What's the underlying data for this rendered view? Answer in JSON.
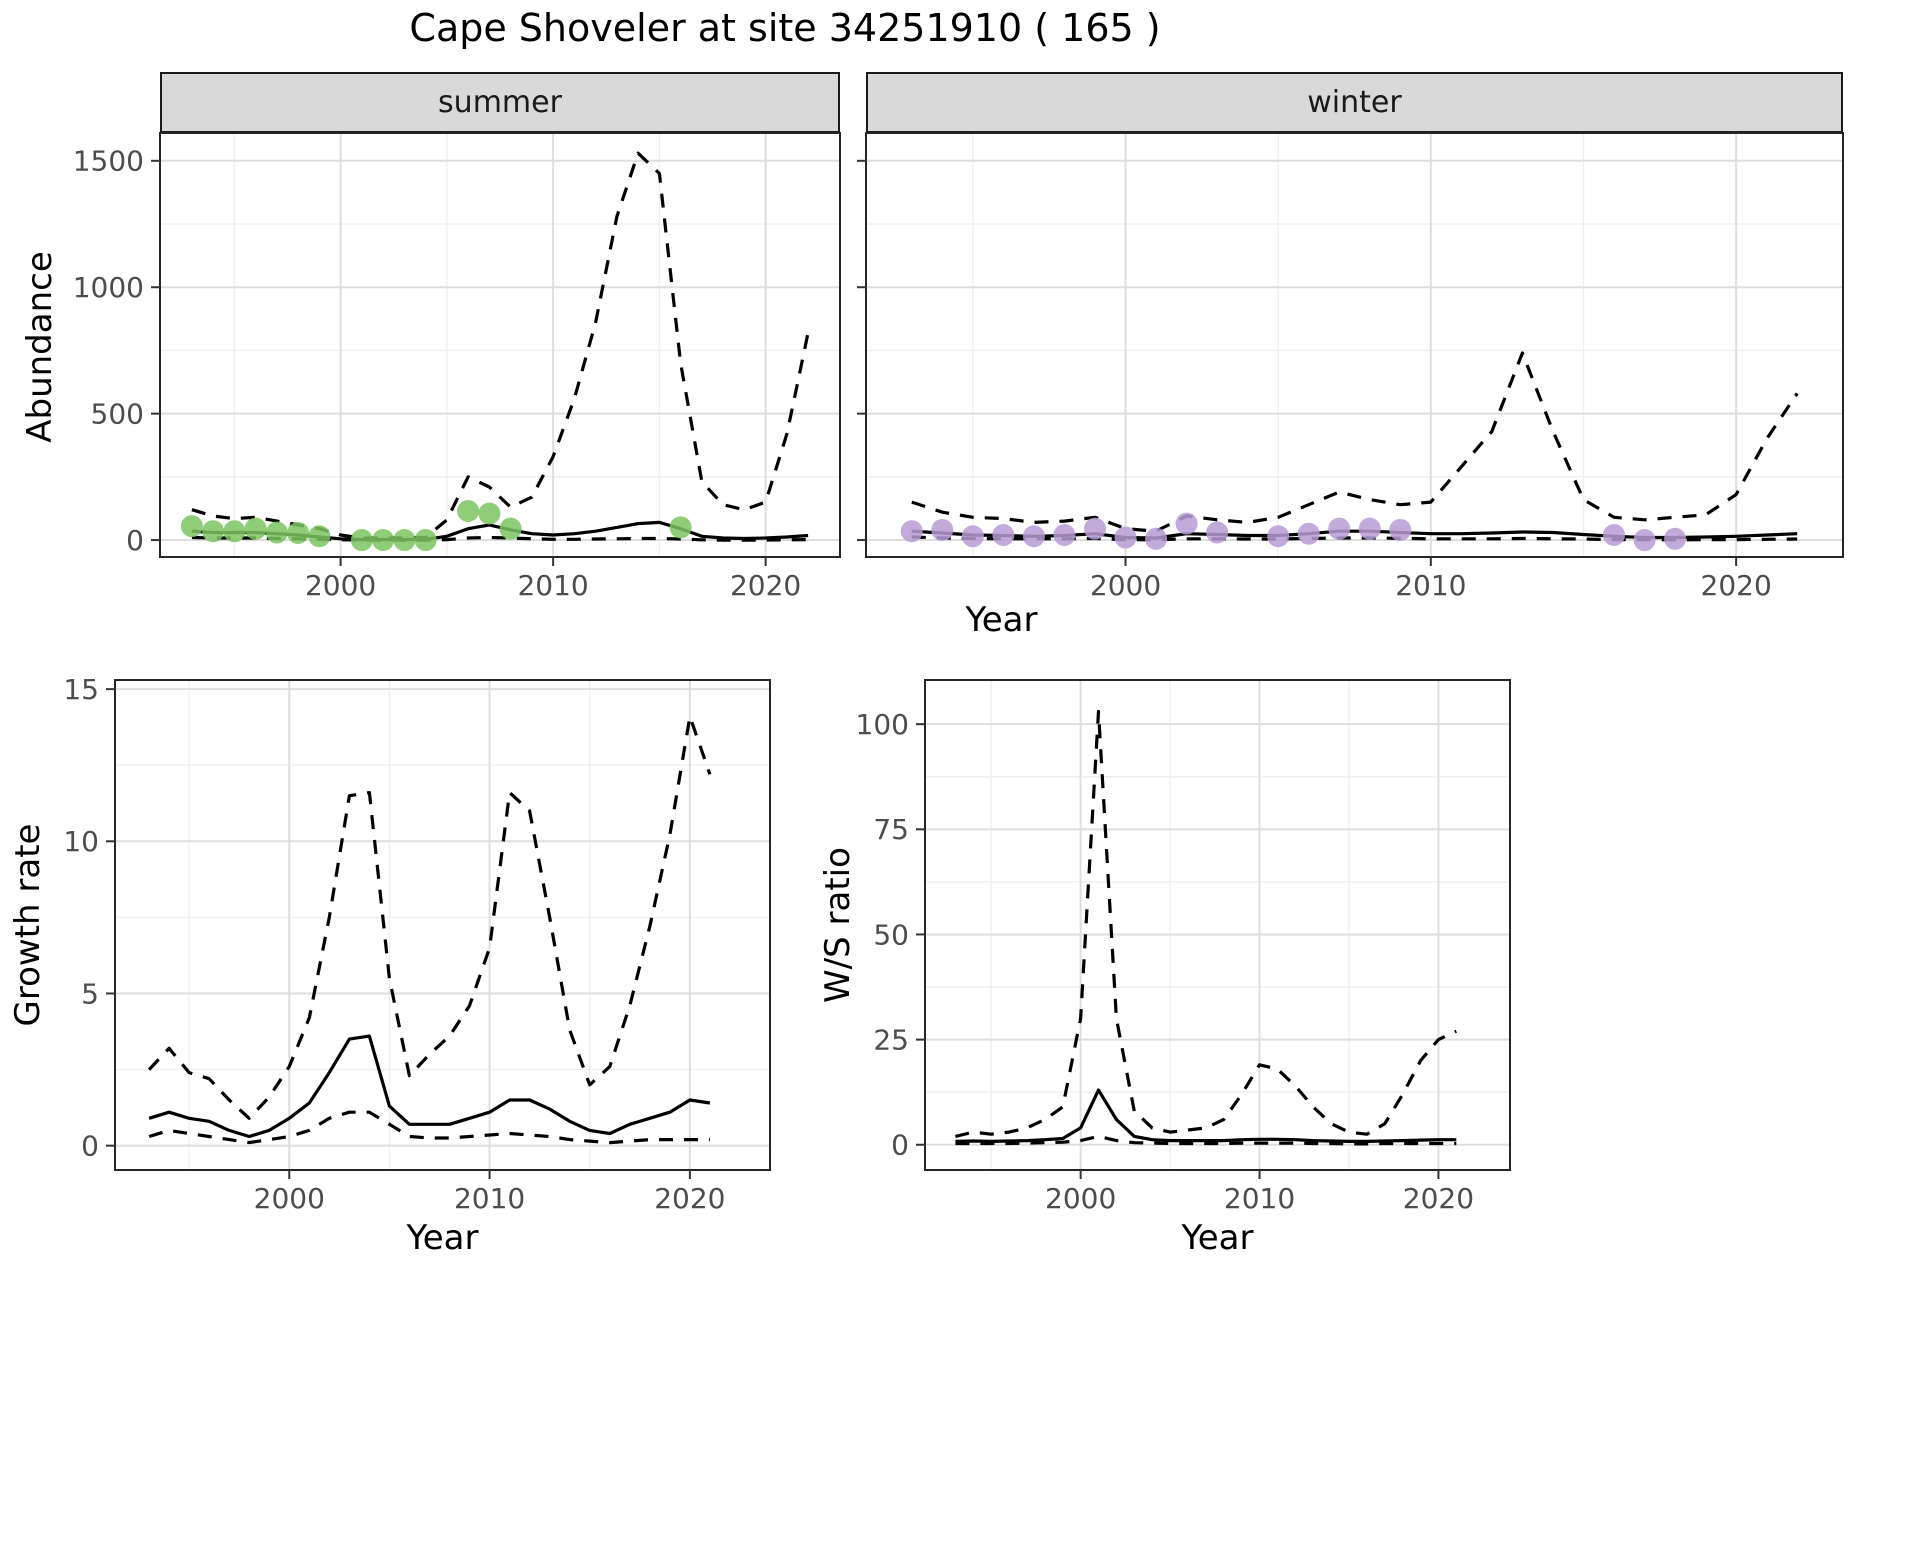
{
  "title": "Cape Shoveler at site 34251910 ( 165 )",
  "colors": {
    "summer_points": "#7DC462",
    "winter_points": "#B79BD4",
    "line": "#000000",
    "grid_major": "#DEDEDE",
    "grid_minor": "#EFEFEF",
    "strip_bg": "#D9D9D9",
    "tick_text": "#4D4D4D",
    "panel_border": "#262626"
  },
  "chart_data": [
    {
      "id": "abundance-summer",
      "type": "line",
      "facet_label": "summer",
      "xlabel": "Year",
      "ylabel": "Abundance",
      "xlim": [
        1991.5,
        2023.5
      ],
      "ylim": [
        -67,
        1610
      ],
      "xticks": [
        2000,
        2010,
        2020
      ],
      "yticks": [
        0,
        500,
        1000,
        1500
      ],
      "series": [
        {
          "name": "upper-ci",
          "style": "dashed",
          "x": [
            1993,
            1994,
            1995,
            1996,
            1997,
            1998,
            1999,
            2000,
            2001,
            2002,
            2003,
            2004,
            2005,
            2006,
            2007,
            2008,
            2009,
            2010,
            2011,
            2012,
            2013,
            2014,
            2015,
            2016,
            2017,
            2018,
            2019,
            2020,
            2021,
            2022
          ],
          "y": [
            120,
            95,
            85,
            90,
            75,
            60,
            45,
            20,
            8,
            8,
            8,
            10,
            80,
            250,
            210,
            130,
            170,
            330,
            560,
            860,
            1280,
            1530,
            1450,
            700,
            230,
            140,
            120,
            150,
            420,
            820
          ]
        },
        {
          "name": "mean-fit",
          "style": "solid",
          "x": [
            1993,
            1994,
            1995,
            1996,
            1997,
            1998,
            1999,
            2000,
            2001,
            2002,
            2003,
            2004,
            2005,
            2006,
            2007,
            2008,
            2009,
            2010,
            2011,
            2012,
            2013,
            2014,
            2015,
            2016,
            2017,
            2018,
            2019,
            2020,
            2021,
            2022
          ],
          "y": [
            35,
            30,
            30,
            30,
            25,
            20,
            12,
            5,
            2,
            2,
            2,
            3,
            15,
            45,
            60,
            40,
            25,
            20,
            25,
            35,
            50,
            65,
            70,
            45,
            15,
            8,
            6,
            8,
            12,
            18
          ]
        },
        {
          "name": "lower-ci",
          "style": "dashed",
          "x": [
            1993,
            1994,
            1995,
            1996,
            1997,
            1998,
            1999,
            2000,
            2001,
            2002,
            2003,
            2004,
            2005,
            2006,
            2007,
            2008,
            2009,
            2010,
            2011,
            2012,
            2013,
            2014,
            2015,
            2016,
            2017,
            2018,
            2019,
            2020,
            2021,
            2022
          ],
          "y": [
            10,
            8,
            8,
            8,
            6,
            5,
            3,
            1,
            0,
            0,
            0,
            0,
            2,
            8,
            10,
            8,
            5,
            3,
            3,
            4,
            5,
            6,
            6,
            4,
            1,
            0,
            0,
            0,
            1,
            2
          ]
        },
        {
          "name": "observed-counts",
          "style": "points",
          "color": "#7DC462",
          "x": [
            1993,
            1994,
            1995,
            1996,
            1997,
            1998,
            1999,
            2001,
            2002,
            2003,
            2004,
            2006,
            2007,
            2008,
            2016
          ],
          "y": [
            55,
            35,
            35,
            45,
            30,
            28,
            15,
            0,
            0,
            0,
            0,
            115,
            105,
            45,
            50
          ]
        }
      ]
    },
    {
      "id": "abundance-winter",
      "type": "line",
      "facet_label": "winter",
      "xlabel": "Year",
      "ylabel": "Abundance",
      "xlim": [
        1991.5,
        2023.5
      ],
      "ylim": [
        -67,
        1610
      ],
      "xticks": [
        2000,
        2010,
        2020
      ],
      "yticks": [
        0,
        500,
        1000,
        1500
      ],
      "series": [
        {
          "name": "upper-ci",
          "style": "dashed",
          "x": [
            1993,
            1994,
            1995,
            1996,
            1997,
            1998,
            1999,
            2000,
            2001,
            2002,
            2003,
            2004,
            2005,
            2006,
            2007,
            2008,
            2009,
            2010,
            2011,
            2012,
            2013,
            2014,
            2015,
            2016,
            2017,
            2018,
            2019,
            2020,
            2021,
            2022
          ],
          "y": [
            150,
            110,
            90,
            85,
            70,
            75,
            90,
            45,
            35,
            95,
            80,
            70,
            90,
            140,
            190,
            160,
            140,
            150,
            290,
            430,
            740,
            430,
            160,
            90,
            80,
            90,
            100,
            180,
            400,
            580
          ]
        },
        {
          "name": "mean-fit",
          "style": "solid",
          "x": [
            1993,
            1994,
            1995,
            1996,
            1997,
            1998,
            1999,
            2000,
            2001,
            2002,
            2003,
            2004,
            2005,
            2006,
            2007,
            2008,
            2009,
            2010,
            2011,
            2012,
            2013,
            2014,
            2015,
            2016,
            2017,
            2018,
            2019,
            2020,
            2021,
            2022
          ],
          "y": [
            35,
            28,
            20,
            18,
            15,
            18,
            25,
            10,
            8,
            25,
            22,
            18,
            18,
            25,
            35,
            35,
            30,
            25,
            25,
            28,
            32,
            30,
            22,
            15,
            10,
            10,
            12,
            15,
            20,
            25
          ]
        },
        {
          "name": "lower-ci",
          "style": "dashed",
          "x": [
            1993,
            1994,
            1995,
            1996,
            1997,
            1998,
            1999,
            2000,
            2001,
            2002,
            2003,
            2004,
            2005,
            2006,
            2007,
            2008,
            2009,
            2010,
            2011,
            2012,
            2013,
            2014,
            2015,
            2016,
            2017,
            2018,
            2019,
            2020,
            2021,
            2022
          ],
          "y": [
            12,
            8,
            6,
            5,
            5,
            5,
            6,
            2,
            1,
            5,
            5,
            4,
            4,
            6,
            8,
            8,
            7,
            5,
            5,
            5,
            6,
            5,
            4,
            2,
            1,
            1,
            2,
            2,
            3,
            4
          ]
        },
        {
          "name": "observed-counts",
          "style": "points",
          "color": "#B79BD4",
          "x": [
            1993,
            1994,
            1995,
            1996,
            1997,
            1998,
            1999,
            2000,
            2001,
            2002,
            2003,
            2005,
            2006,
            2007,
            2008,
            2009,
            2016,
            2017,
            2018
          ],
          "y": [
            35,
            40,
            15,
            20,
            15,
            20,
            45,
            10,
            5,
            65,
            30,
            15,
            25,
            45,
            45,
            40,
            20,
            0,
            5
          ]
        }
      ]
    },
    {
      "id": "growth-rate",
      "type": "line",
      "xlabel": "Year",
      "ylabel": "Growth rate",
      "xlim": [
        1991.3,
        2024
      ],
      "ylim": [
        -0.8,
        15.3
      ],
      "xticks": [
        2000,
        2010,
        2020
      ],
      "yticks": [
        0,
        5,
        10,
        15
      ],
      "series": [
        {
          "name": "upper-ci",
          "style": "dashed",
          "x": [
            1993,
            1994,
            1995,
            1996,
            1997,
            1998,
            1999,
            2000,
            2001,
            2002,
            2003,
            2004,
            2005,
            2006,
            2007,
            2008,
            2009,
            2010,
            2011,
            2012,
            2013,
            2014,
            2015,
            2016,
            2017,
            2018,
            2019,
            2020,
            2021
          ],
          "y": [
            2.5,
            3.2,
            2.4,
            2.2,
            1.5,
            0.9,
            1.6,
            2.6,
            4.2,
            7.5,
            11.5,
            11.6,
            5.5,
            2.3,
            3.0,
            3.6,
            4.6,
            6.5,
            11.6,
            11.0,
            7.5,
            3.8,
            2.0,
            2.6,
            4.6,
            7.2,
            10.2,
            14.1,
            12.2
          ]
        },
        {
          "name": "mean-fit",
          "style": "solid",
          "x": [
            1993,
            1994,
            1995,
            1996,
            1997,
            1998,
            1999,
            2000,
            2001,
            2002,
            2003,
            2004,
            2005,
            2006,
            2007,
            2008,
            2009,
            2010,
            2011,
            2012,
            2013,
            2014,
            2015,
            2016,
            2017,
            2018,
            2019,
            2020,
            2021
          ],
          "y": [
            0.9,
            1.1,
            0.9,
            0.8,
            0.5,
            0.3,
            0.5,
            0.9,
            1.4,
            2.4,
            3.5,
            3.6,
            1.3,
            0.7,
            0.7,
            0.7,
            0.9,
            1.1,
            1.5,
            1.5,
            1.2,
            0.8,
            0.5,
            0.4,
            0.7,
            0.9,
            1.1,
            1.5,
            1.4
          ]
        },
        {
          "name": "lower-ci",
          "style": "dashed",
          "x": [
            1993,
            1994,
            1995,
            1996,
            1997,
            1998,
            1999,
            2000,
            2001,
            2002,
            2003,
            2004,
            2005,
            2006,
            2007,
            2008,
            2009,
            2010,
            2011,
            2012,
            2013,
            2014,
            2015,
            2016,
            2017,
            2018,
            2019,
            2020,
            2021
          ],
          "y": [
            0.3,
            0.5,
            0.4,
            0.3,
            0.2,
            0.1,
            0.2,
            0.3,
            0.5,
            0.9,
            1.1,
            1.1,
            0.7,
            0.3,
            0.25,
            0.25,
            0.3,
            0.35,
            0.4,
            0.35,
            0.3,
            0.2,
            0.15,
            0.1,
            0.15,
            0.2,
            0.2,
            0.2,
            0.2
          ]
        }
      ]
    },
    {
      "id": "ws-ratio",
      "type": "line",
      "xlabel": "Year",
      "ylabel": "W/S ratio",
      "xlim": [
        1991.3,
        2024
      ],
      "ylim": [
        -6,
        110.5
      ],
      "xticks": [
        2000,
        2010,
        2020
      ],
      "yticks": [
        0,
        25,
        50,
        75,
        100
      ],
      "series": [
        {
          "name": "upper-ci",
          "style": "dashed",
          "x": [
            1993,
            1994,
            1995,
            1996,
            1997,
            1998,
            1999,
            2000,
            2001,
            2002,
            2003,
            2004,
            2005,
            2006,
            2007,
            2008,
            2009,
            2010,
            2011,
            2012,
            2013,
            2014,
            2015,
            2016,
            2017,
            2018,
            2019,
            2020,
            2021
          ],
          "y": [
            2,
            3,
            2.5,
            3,
            4,
            6,
            9,
            30,
            103,
            30,
            8,
            4,
            3,
            3.5,
            4,
            6,
            12,
            19,
            18,
            14,
            9,
            5,
            3,
            2.5,
            5,
            12,
            20,
            25,
            27
          ]
        },
        {
          "name": "mean-fit",
          "style": "solid",
          "x": [
            1993,
            1994,
            1995,
            1996,
            1997,
            1998,
            1999,
            2000,
            2001,
            2002,
            2003,
            2004,
            2005,
            2006,
            2007,
            2008,
            2009,
            2010,
            2011,
            2012,
            2013,
            2014,
            2015,
            2016,
            2017,
            2018,
            2019,
            2020,
            2021
          ],
          "y": [
            0.8,
            0.9,
            0.8,
            0.9,
            1.0,
            1.2,
            1.5,
            4,
            13,
            6,
            2,
            1.2,
            1.0,
            1.0,
            1.0,
            1.0,
            1.2,
            1.3,
            1.3,
            1.2,
            1.0,
            0.9,
            0.8,
            0.8,
            0.9,
            1.0,
            1.1,
            1.2,
            1.2
          ]
        },
        {
          "name": "lower-ci",
          "style": "dashed",
          "x": [
            1993,
            1994,
            1995,
            1996,
            1997,
            1998,
            1999,
            2000,
            2001,
            2002,
            2003,
            2004,
            2005,
            2006,
            2007,
            2008,
            2009,
            2010,
            2011,
            2012,
            2013,
            2014,
            2015,
            2016,
            2017,
            2018,
            2019,
            2020,
            2021
          ],
          "y": [
            0.3,
            0.3,
            0.3,
            0.3,
            0.4,
            0.5,
            0.6,
            1,
            2,
            1,
            0.5,
            0.4,
            0.3,
            0.3,
            0.3,
            0.3,
            0.4,
            0.4,
            0.4,
            0.4,
            0.3,
            0.3,
            0.2,
            0.2,
            0.3,
            0.3,
            0.3,
            0.3,
            0.3
          ]
        }
      ]
    }
  ]
}
